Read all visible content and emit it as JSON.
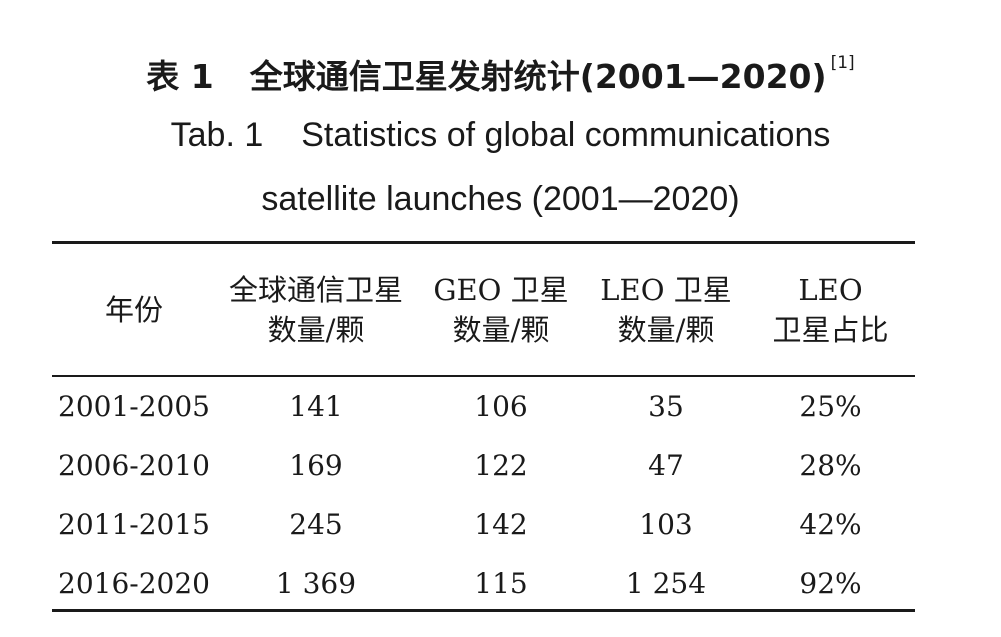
{
  "caption": {
    "cn_label": "表 1",
    "cn_title": "全球通信卫星发射统计(2001—2020)",
    "cn_ref": "[1]",
    "en_label": "Tab. 1",
    "en_title_line1": "Statistics of global communications",
    "en_title_line2": "satellite launches (2001—2020)"
  },
  "table": {
    "headers": [
      {
        "line1": "年份",
        "line2": ""
      },
      {
        "line1": "全球通信卫星",
        "line2": "数量/颗"
      },
      {
        "line1": "GEO 卫星",
        "line2": "数量/颗"
      },
      {
        "line1": "LEO 卫星",
        "line2": "数量/颗"
      },
      {
        "line1": "LEO",
        "line2": "卫星占比"
      }
    ],
    "rows": [
      [
        "2001-2005",
        "141",
        "106",
        "35",
        "25%"
      ],
      [
        "2006-2010",
        "169",
        "122",
        "47",
        "28%"
      ],
      [
        "2011-2015",
        "245",
        "142",
        "103",
        "42%"
      ],
      [
        "2016-2020",
        "1 369",
        "115",
        "1 254",
        "92%"
      ]
    ]
  }
}
